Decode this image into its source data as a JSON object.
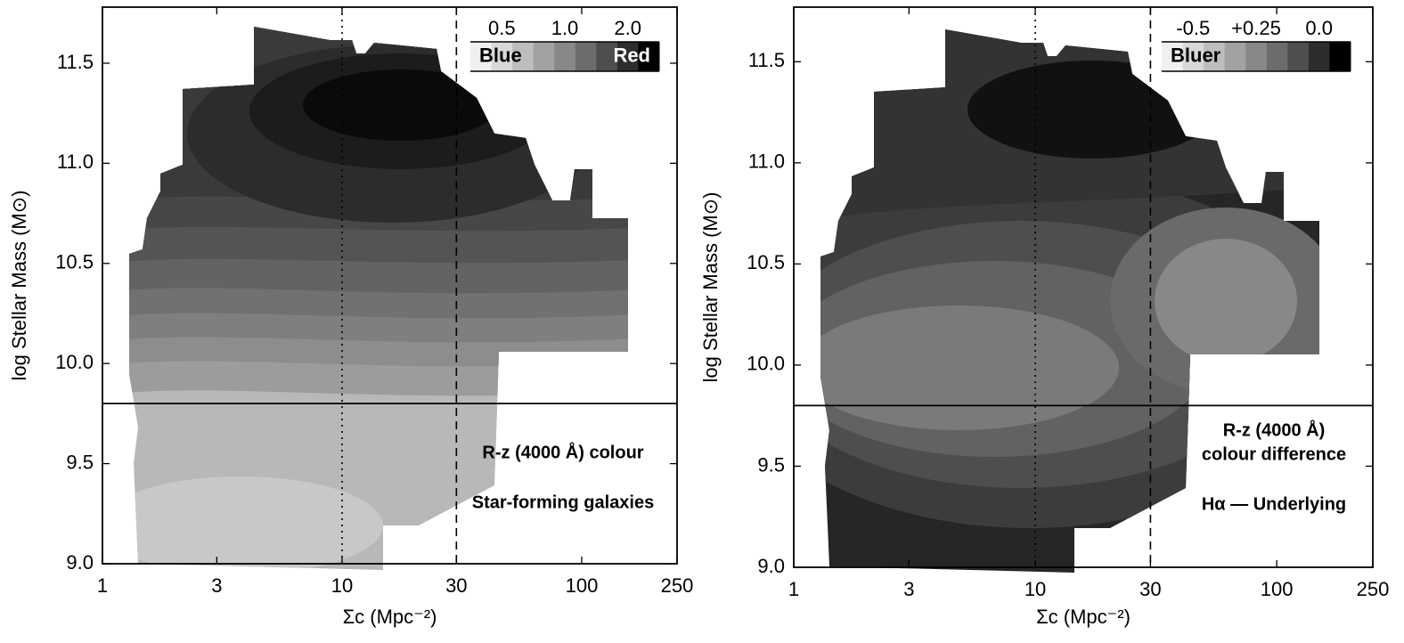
{
  "chart_data": [
    {
      "type": "contour",
      "xlabel": "Σc (Mpc⁻²)",
      "ylabel": "log Stellar Mass (M⊙)",
      "xscale": "log",
      "xlim": [
        1,
        250
      ],
      "xticks": [
        1,
        3,
        10,
        30,
        100,
        250
      ],
      "ylim": [
        9,
        11.78
      ],
      "yticks": [
        {
          "value": 9,
          "label": "9.0"
        },
        9.5,
        {
          "value": 10,
          "label": "10.0"
        },
        10.5,
        {
          "value": 11,
          "label": "11.0"
        },
        11.5
      ],
      "hlines": [
        9.8
      ],
      "vlines": [
        {
          "value": 10,
          "style": "dotted"
        },
        {
          "value": 30,
          "style": "dashed"
        }
      ],
      "colorbar": {
        "ticks": [
          0.5,
          {
            "value": 1,
            "label": "1.0"
          },
          {
            "value": 2,
            "label": "2.0"
          }
        ],
        "label_low": "Blue",
        "label_high": "Red",
        "colors": [
          "#f0f0f0",
          "#d8d8d8",
          "#bdbdbd",
          "#a2a2a2",
          "#888888",
          "#6c6c6c",
          "#4e4e4e",
          "#2c2c2c",
          "#000000"
        ]
      },
      "annotations": [
        "R-z (4000 Å) colour",
        "Star-forming galaxies"
      ]
    },
    {
      "type": "contour",
      "xlabel": "Σc (Mpc⁻²)",
      "ylabel": "log Stellar Mass (M⊙)",
      "xscale": "log",
      "xlim": [
        1,
        250
      ],
      "xticks": [
        1,
        3,
        10,
        30,
        100,
        250
      ],
      "ylim": [
        9,
        11.77
      ],
      "yticks": [
        {
          "value": 9,
          "label": "9.0"
        },
        9.5,
        {
          "value": 10,
          "label": "10.0"
        },
        10.5,
        {
          "value": 11,
          "label": "11.0"
        },
        11.5
      ],
      "hlines": [
        9.8
      ],
      "vlines": [
        {
          "value": 10,
          "style": "dotted"
        },
        {
          "value": 30,
          "style": "dashed"
        }
      ],
      "colorbar": {
        "ticks": [
          -0.5,
          {
            "value": 0.25,
            "label": "+0.25"
          },
          {
            "value": 0,
            "label": "0.0"
          }
        ],
        "label_low": "Bluer",
        "colors": [
          "#f0f0f0",
          "#d8d8d8",
          "#bdbdbd",
          "#a2a2a2",
          "#888888",
          "#6c6c6c",
          "#4e4e4e",
          "#2c2c2c",
          "#000000"
        ]
      },
      "annotations": [
        "R-z (4000 Å)",
        "colour difference",
        "Hα — Underlying"
      ]
    }
  ]
}
